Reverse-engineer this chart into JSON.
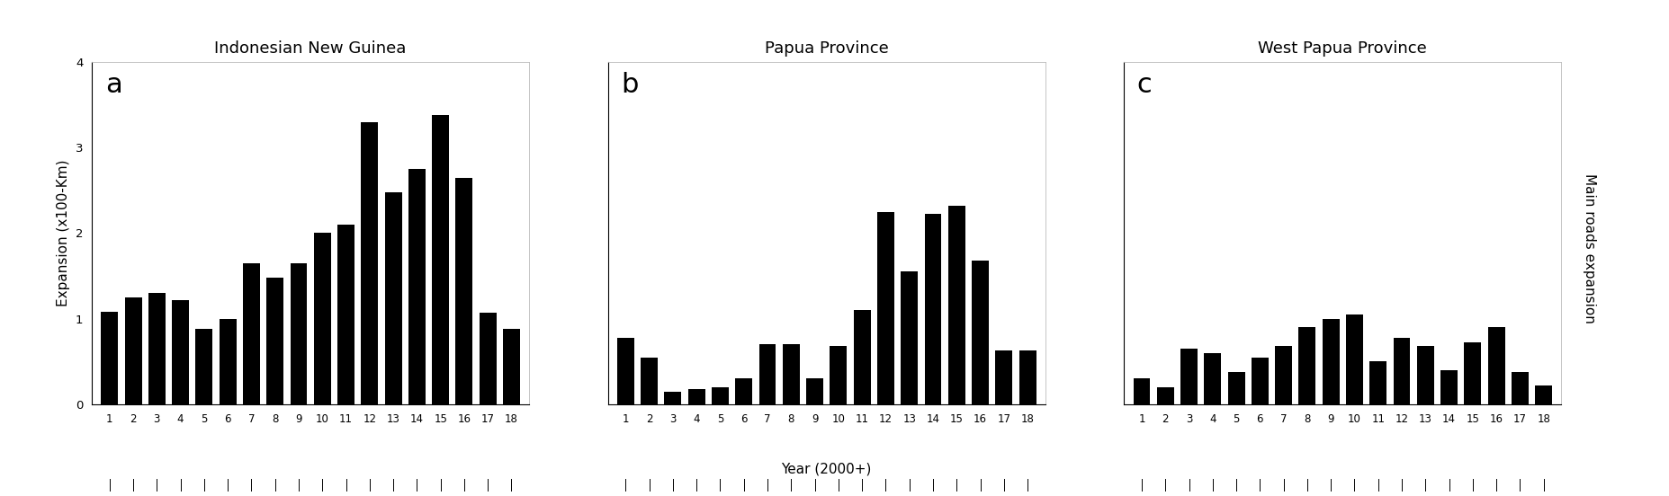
{
  "titles": [
    "Indonesian New Guinea",
    "Papua Province",
    "West Papua Province"
  ],
  "panel_labels": [
    "a",
    "b",
    "c"
  ],
  "years": [
    1,
    2,
    3,
    4,
    5,
    6,
    7,
    8,
    9,
    10,
    11,
    12,
    13,
    14,
    15,
    16,
    17,
    18
  ],
  "values_a": [
    1.08,
    1.25,
    1.3,
    1.22,
    0.88,
    1.0,
    1.65,
    1.48,
    1.65,
    2.0,
    2.1,
    3.3,
    2.48,
    2.75,
    3.38,
    2.65,
    1.07,
    0.88
  ],
  "values_b": [
    0.78,
    0.55,
    0.15,
    0.18,
    0.2,
    0.3,
    0.7,
    0.7,
    0.3,
    0.68,
    1.1,
    2.25,
    1.55,
    2.22,
    2.32,
    1.68,
    0.63,
    0.63
  ],
  "values_c": [
    0.3,
    0.2,
    0.65,
    0.6,
    0.38,
    0.55,
    0.68,
    0.9,
    1.0,
    1.05,
    0.5,
    0.78,
    0.68,
    0.4,
    0.72,
    0.9,
    0.38,
    0.22
  ],
  "ylabel_a": "Expansion (x100-Km)",
  "xlabel": "Year (2000+)",
  "ylabel_right": "Main roads expansion",
  "ylim": [
    0,
    4
  ],
  "yticks": [
    0,
    1,
    2,
    3,
    4
  ],
  "bar_color": "#000000",
  "bg_color": "#ffffff",
  "title_fontsize": 13,
  "label_fontsize": 11,
  "panel_label_fontsize": 22,
  "tick_fontsize": 8.5
}
